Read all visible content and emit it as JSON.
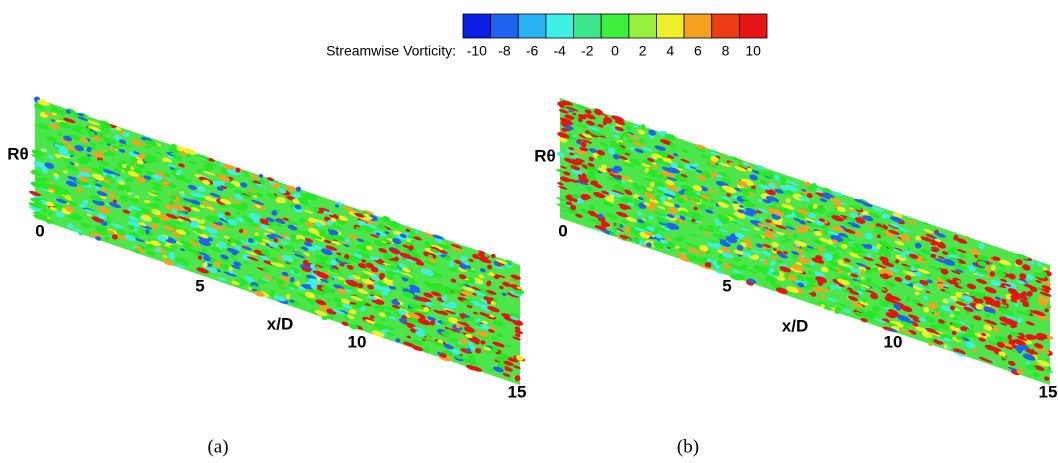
{
  "colorbar": {
    "label": "Streamwise Vorticity:",
    "ticks": [
      -10,
      -8,
      -6,
      -4,
      -2,
      0,
      2,
      4,
      6,
      8,
      10
    ],
    "colors": [
      "#0a1ee6",
      "#1e64f0",
      "#28b4f5",
      "#3cf0e6",
      "#3ce68c",
      "#28e628",
      "#3cf03c",
      "#96f03c",
      "#f0f028",
      "#f5a01e",
      "#f03c14",
      "#e61414"
    ]
  },
  "panels": [
    {
      "y_label": "Rθ",
      "x_label": "x/D",
      "x_ticks": [
        0,
        5,
        10,
        15
      ],
      "caption": "(a)"
    },
    {
      "y_label": "Rθ",
      "x_label": "x/D",
      "x_ticks": [
        0,
        5,
        10,
        15
      ],
      "caption": "(b)"
    }
  ]
}
